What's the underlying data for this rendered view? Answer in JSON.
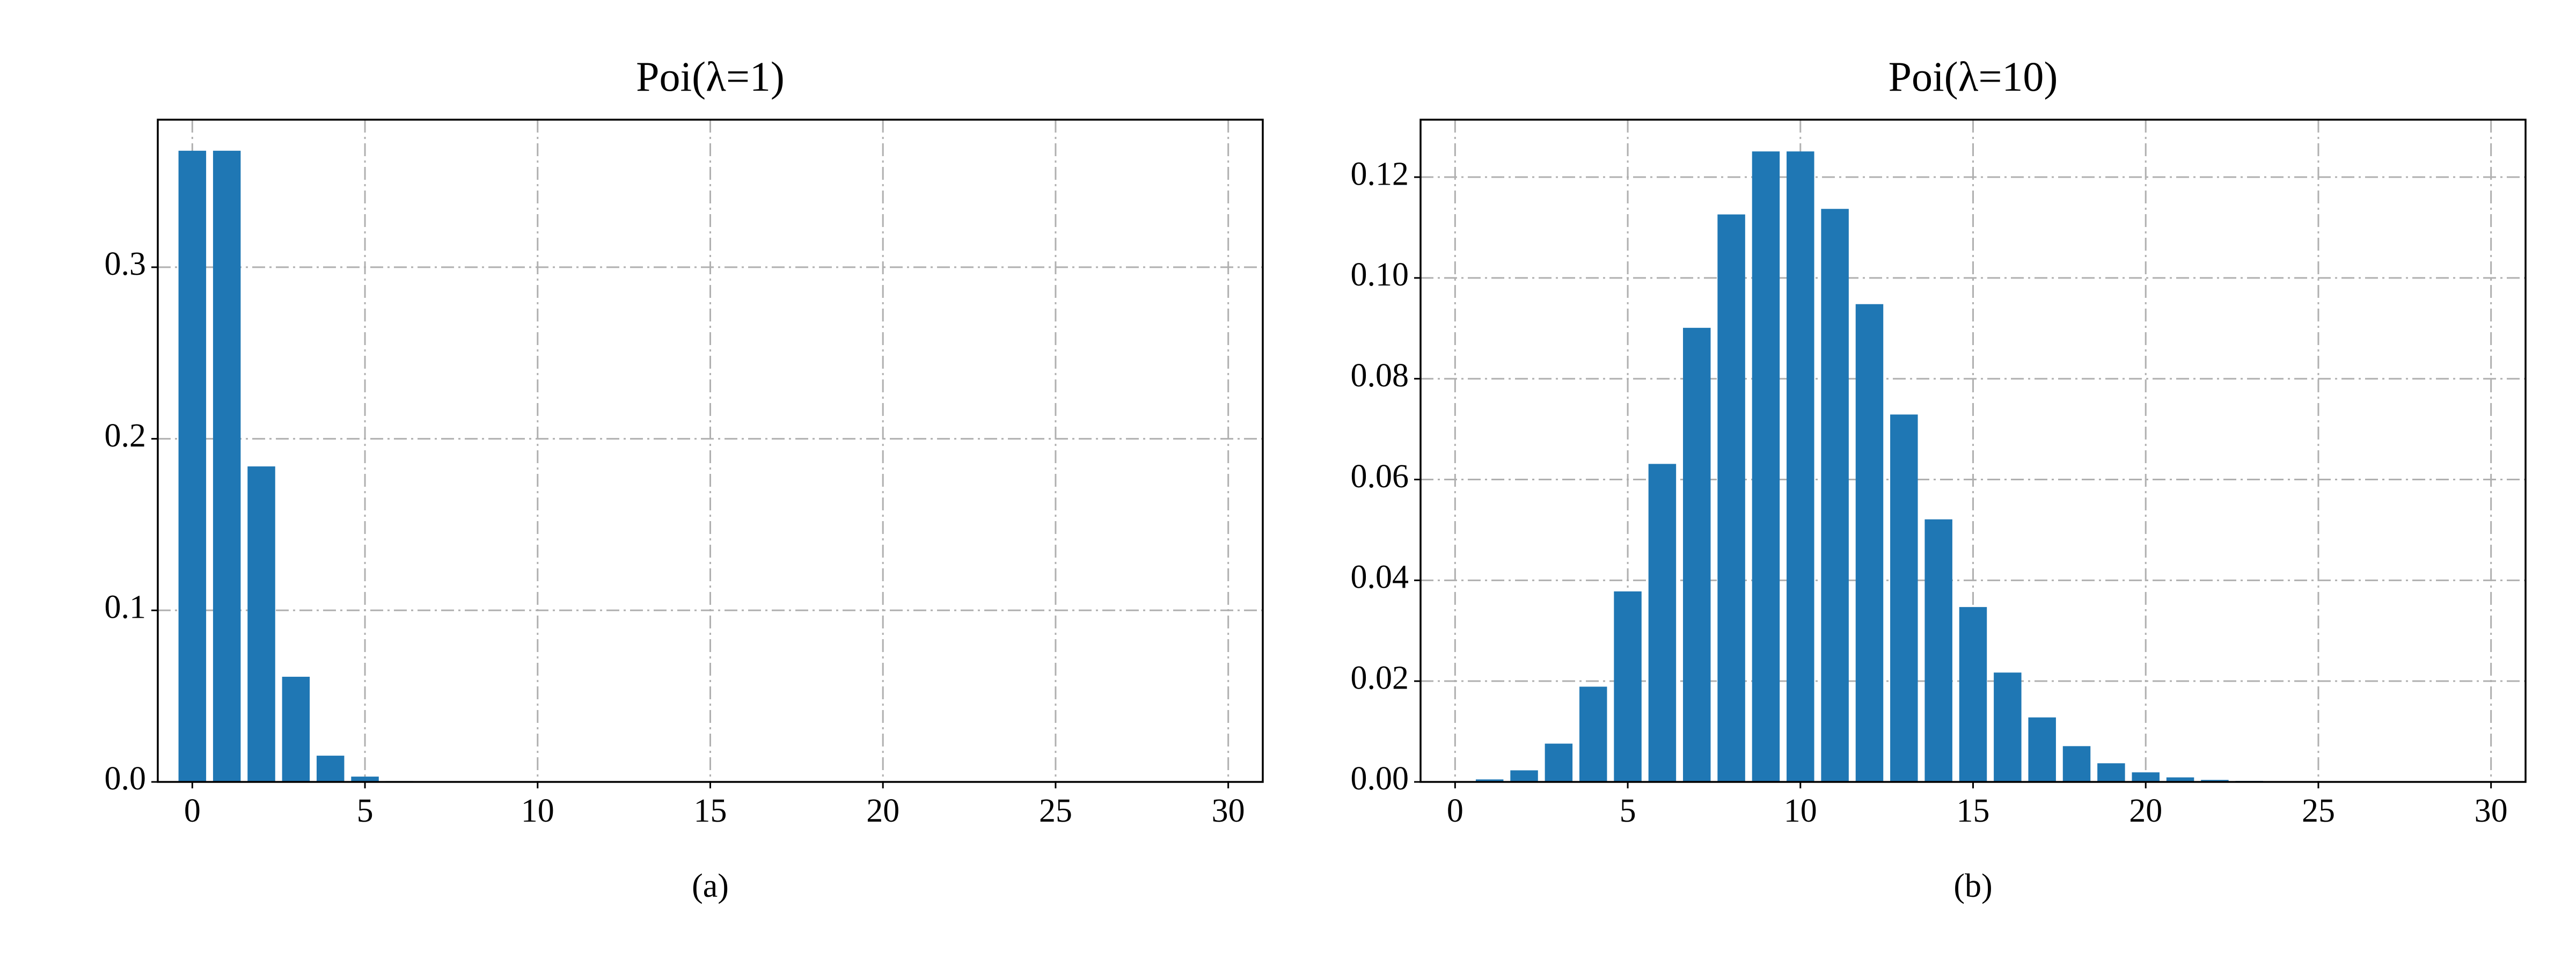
{
  "chart_data": [
    {
      "type": "bar",
      "title": "Poi(λ=1)",
      "xlabel": "(a)",
      "x": [
        0,
        1,
        2,
        3,
        4,
        5,
        6,
        7,
        8,
        9,
        10,
        11,
        12,
        13,
        14,
        15,
        16,
        17,
        18,
        19,
        20,
        21,
        22,
        23,
        24,
        25,
        26,
        27,
        28,
        29
      ],
      "values": [
        0.3679,
        0.3679,
        0.1839,
        0.0613,
        0.0153,
        0.0031,
        0.0005,
        0.0001,
        0,
        0,
        0,
        0,
        0,
        0,
        0,
        0,
        0,
        0,
        0,
        0,
        0,
        0,
        0,
        0,
        0,
        0,
        0,
        0,
        0,
        0
      ],
      "color": "#1f77b4",
      "xlim": [
        -1,
        31
      ],
      "ylim": [
        0,
        0.386
      ],
      "xticks": [
        0,
        5,
        10,
        15,
        20,
        25,
        30
      ],
      "yticks": [
        {
          "value": 0,
          "label": "0.0"
        },
        0.1,
        0.2,
        0.3
      ],
      "grid": true
    },
    {
      "type": "bar",
      "title": "Poi(λ=10)",
      "xlabel": "(b)",
      "x": [
        0,
        1,
        2,
        3,
        4,
        5,
        6,
        7,
        8,
        9,
        10,
        11,
        12,
        13,
        14,
        15,
        16,
        17,
        18,
        19,
        20,
        21,
        22,
        23,
        24,
        25,
        26,
        27,
        28,
        29
      ],
      "values": [
        0.0,
        0.0005,
        0.0023,
        0.0076,
        0.0189,
        0.0378,
        0.0631,
        0.0901,
        0.1126,
        0.1251,
        0.1251,
        0.1137,
        0.0948,
        0.0729,
        0.0521,
        0.0347,
        0.0217,
        0.0128,
        0.0071,
        0.0037,
        0.0019,
        0.0009,
        0.0004,
        0.0002,
        0.0001,
        0,
        0,
        0,
        0,
        0
      ],
      "color": "#1f77b4",
      "xlim": [
        -1,
        31
      ],
      "ylim": [
        0,
        0.1314
      ],
      "xticks": [
        0,
        5,
        10,
        15,
        20,
        25,
        30
      ],
      "yticks": [
        {
          "value": 0,
          "label": "0.00"
        },
        {
          "value": 0.02,
          "label": "0.02"
        },
        {
          "value": 0.04,
          "label": "0.04"
        },
        {
          "value": 0.06,
          "label": "0.06"
        },
        {
          "value": 0.08,
          "label": "0.08"
        },
        {
          "value": 0.1,
          "label": "0.10"
        },
        {
          "value": 0.12,
          "label": "0.12"
        }
      ],
      "grid": true
    }
  ]
}
